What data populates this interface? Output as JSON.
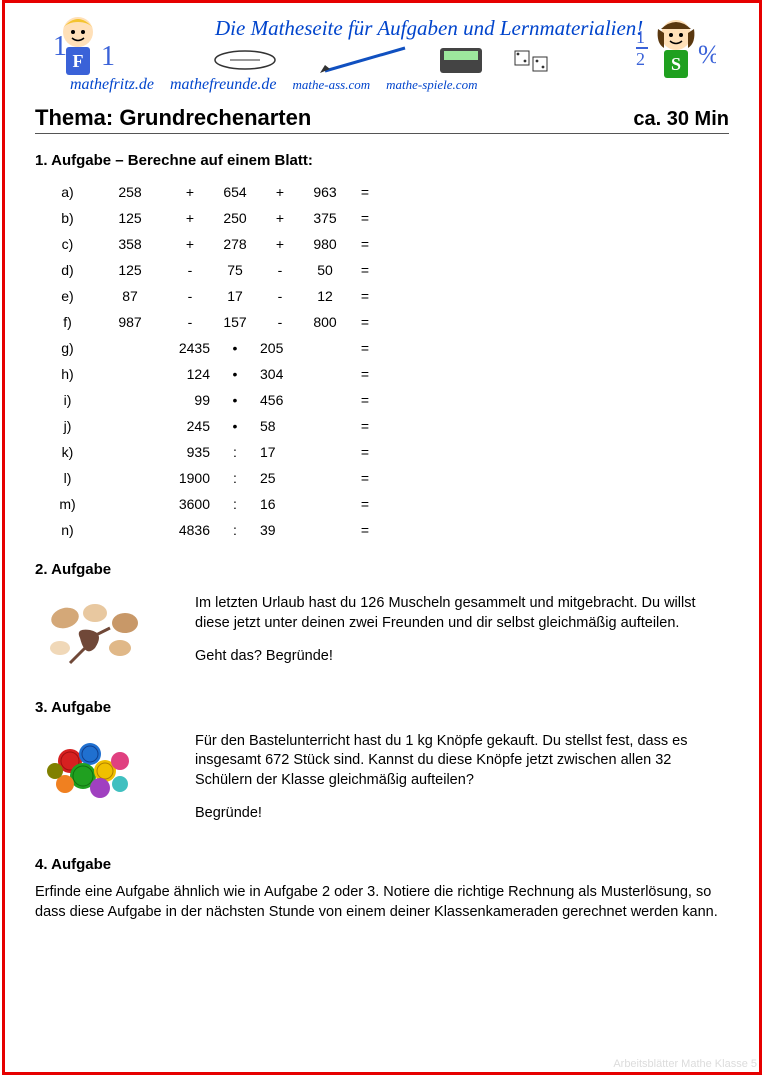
{
  "header": {
    "slogan": "Die Matheseite für Aufgaben und Lernmaterialien!",
    "sites": [
      "mathefritz.de",
      "mathefreunde.de",
      "mathe-ass.com",
      "mathe-spiele.com"
    ],
    "kid_left_letter": "F",
    "kid_right_letter": "S"
  },
  "title": {
    "label": "Thema:",
    "topic": "Grundrechenarten",
    "time": "ca. 30 Min"
  },
  "colors": {
    "border": "#e60000",
    "header_text": "#0044cc",
    "text": "#000000"
  },
  "task1": {
    "heading": "1. Aufgabe – Berechne auf einem Blatt:",
    "rows": [
      {
        "label": "a)",
        "a": "258",
        "op1": "+",
        "b": "654",
        "op2": "+",
        "c": "963"
      },
      {
        "label": "b)",
        "a": "125",
        "op1": "+",
        "b": "250",
        "op2": "+",
        "c": "375"
      },
      {
        "label": "c)",
        "a": "358",
        "op1": "+",
        "b": "278",
        "op2": "+",
        "c": "980"
      },
      {
        "label": "d)",
        "a": "125",
        "op1": "-",
        "b": "75",
        "op2": "-",
        "c": "50"
      },
      {
        "label": "e)",
        "a": "87",
        "op1": "-",
        "b": "17",
        "op2": "-",
        "c": "12"
      },
      {
        "label": "f)",
        "a": "987",
        "op1": "-",
        "b": "157",
        "op2": "-",
        "c": "800"
      },
      {
        "label": "g)",
        "a": "2435",
        "op1": "•",
        "b": "205",
        "op2": "",
        "c": ""
      },
      {
        "label": "h)",
        "a": "124",
        "op1": "•",
        "b": "304",
        "op2": "",
        "c": ""
      },
      {
        "label": "i)",
        "a": "99",
        "op1": "•",
        "b": "456",
        "op2": "",
        "c": ""
      },
      {
        "label": "j)",
        "a": "245",
        "op1": "•",
        "b": "58",
        "op2": "",
        "c": ""
      },
      {
        "label": "k)",
        "a": "935",
        "op1": ":",
        "b": "17",
        "op2": "",
        "c": ""
      },
      {
        "label": "l)",
        "a": "1900",
        "op1": ":",
        "b": "25",
        "op2": "",
        "c": ""
      },
      {
        "label": "m)",
        "a": "3600",
        "op1": ":",
        "b": "16",
        "op2": "",
        "c": ""
      },
      {
        "label": "n)",
        "a": "4836",
        "op1": ":",
        "b": "39",
        "op2": "",
        "c": ""
      }
    ]
  },
  "task2": {
    "heading": "2. Aufgabe",
    "p1": "Im letzten Urlaub hast du 126 Muscheln gesammelt und mitgebracht. Du willst diese jetzt unter deinen zwei Freunden und dir selbst gleichmäßig aufteilen.",
    "p2": "Geht das?  Begründe!",
    "icon": "shells-icon"
  },
  "task3": {
    "heading": "3. Aufgabe",
    "p1": "Für den Bastelunterricht hast du 1 kg Knöpfe gekauft. Du stellst fest, dass es insgesamt 672 Stück sind. Kannst du diese Knöpfe jetzt zwischen allen 32 Schülern der Klasse gleichmäßig aufteilen?",
    "p2": "Begründe!",
    "icon": "buttons-icon"
  },
  "task4": {
    "heading": "4. Aufgabe",
    "text": "Erfinde eine Aufgabe ähnlich wie in Aufgabe 2 oder 3. Notiere die richtige Rechnung als Musterlösung, so dass diese Aufgabe in der nächsten Stunde von einem deiner Klassenkameraden gerechnet werden kann."
  },
  "watermark": "Arbeitsblätter Mathe Klasse 5"
}
